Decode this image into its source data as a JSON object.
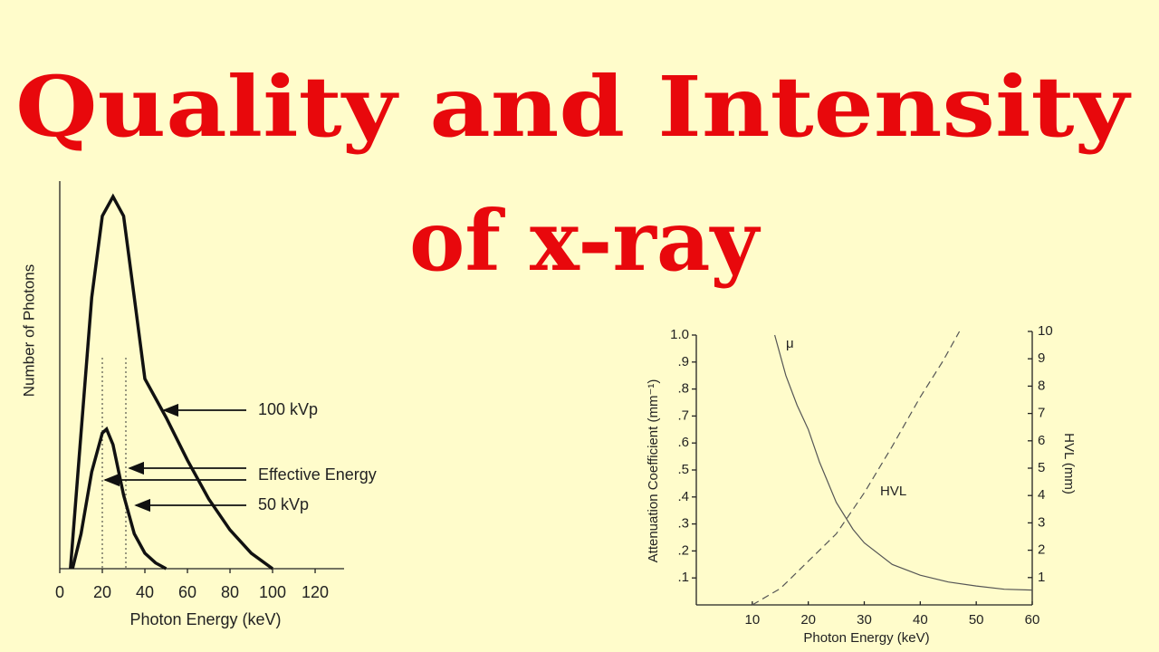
{
  "title": [
    "Quality and Intensity",
    "of x-ray"
  ],
  "chart_data": [
    {
      "type": "line",
      "xlabel": "Photon Energy (keV)",
      "ylabel": "Number of Photons",
      "xlim": [
        0,
        133.6
      ],
      "xticks": [
        0,
        20,
        40,
        60,
        80,
        100,
        120
      ],
      "ylim": [
        0,
        100
      ],
      "annotations": [
        "100 kVp",
        "Effective Energy",
        "50 kVp"
      ],
      "series": [
        {
          "name": "100 kVp",
          "color": "#111111",
          "x": [
            5,
            10,
            15,
            20,
            25,
            30,
            35,
            40,
            50,
            60,
            70,
            80,
            90,
            100
          ],
          "values": [
            0,
            35,
            70,
            91,
            96,
            91,
            70,
            49,
            39,
            28,
            18,
            10,
            4,
            0
          ]
        },
        {
          "name": "50 kVp",
          "color": "#111111",
          "x": [
            6,
            10,
            15,
            20,
            22,
            25,
            30,
            35,
            40,
            45,
            50
          ],
          "values": [
            0,
            9,
            25,
            35,
            36,
            32,
            19,
            9,
            4,
            1.5,
            0
          ]
        }
      ]
    },
    {
      "type": "line",
      "xlabel": "Photon Energy (keV)",
      "ylabel": "Attenuation Coefficient (mm⁻¹)",
      "y2label": "HVL (mm)",
      "xlim": [
        0,
        60
      ],
      "xticks": [
        10,
        20,
        30,
        40,
        50,
        60
      ],
      "ylim": [
        0,
        1.0
      ],
      "yticks": [
        {
          "value": 0.1,
          "label": ".1"
        },
        {
          "value": 0.2,
          "label": ".2"
        },
        {
          "value": 0.3,
          "label": ".3"
        },
        {
          "value": 0.4,
          "label": ".4"
        },
        {
          "value": 0.5,
          "label": ".5"
        },
        {
          "value": 0.6,
          "label": ".6"
        },
        {
          "value": 0.7,
          "label": ".7"
        },
        {
          "value": 0.8,
          "label": ".8"
        },
        {
          "value": 0.9,
          "label": ".9"
        },
        {
          "value": 1.0,
          "label": "1.0"
        }
      ],
      "y2lim": [
        0,
        10
      ],
      "y2ticks": [
        1,
        2,
        3,
        4,
        5,
        6,
        7,
        8,
        9,
        10
      ],
      "series": [
        {
          "name": "μ",
          "color": "#555555",
          "dashed": false,
          "x": [
            14,
            16,
            18,
            20,
            22,
            25,
            28,
            30,
            35,
            40,
            45,
            50,
            55,
            60
          ],
          "values": [
            1.0,
            0.85,
            0.74,
            0.65,
            0.53,
            0.38,
            0.28,
            0.23,
            0.15,
            0.11,
            0.085,
            0.07,
            0.058,
            0.055
          ]
        },
        {
          "name": "HVL",
          "color": "#555555",
          "dashed": true,
          "axis": "y2",
          "x": [
            10,
            15,
            20,
            25,
            30,
            35,
            40,
            44,
            47
          ],
          "values": [
            0,
            0.6,
            1.6,
            2.6,
            4.1,
            5.8,
            7.6,
            8.9,
            10
          ]
        }
      ]
    }
  ]
}
